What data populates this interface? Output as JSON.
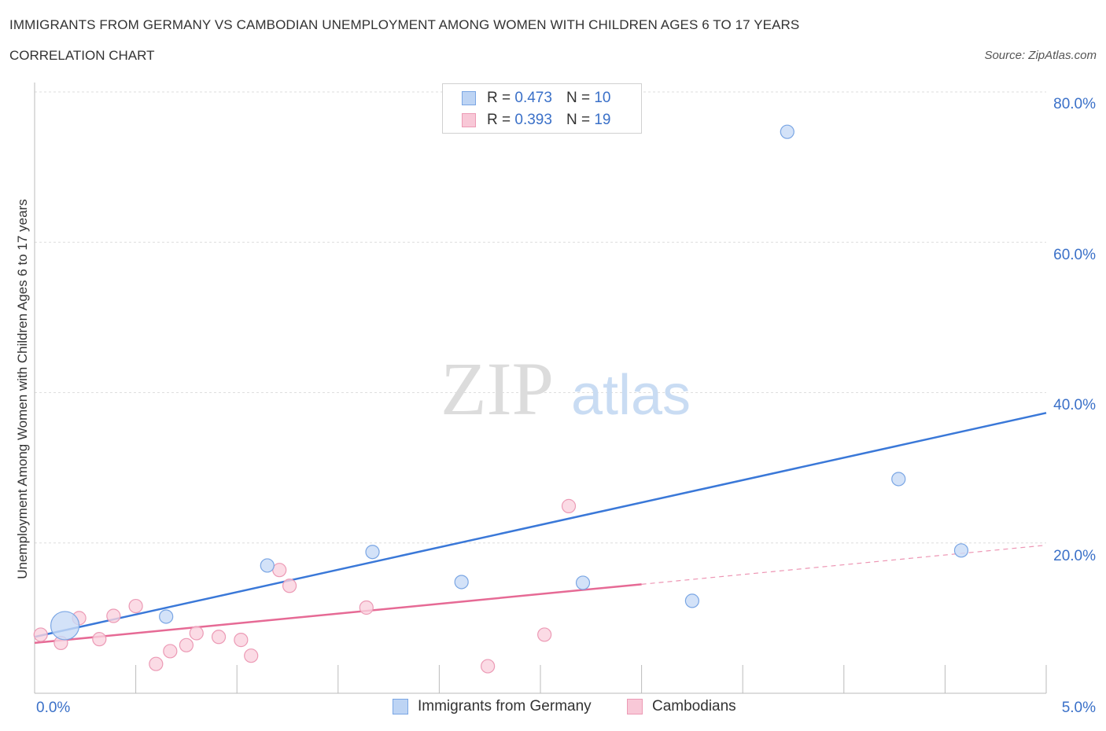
{
  "header": {
    "title": "IMMIGRANTS FROM GERMANY VS CAMBODIAN UNEMPLOYMENT AMONG WOMEN WITH CHILDREN AGES 6 TO 17 YEARS",
    "subtitle": "CORRELATION CHART",
    "source": "Source: ZipAtlas.com"
  },
  "watermark": {
    "zip": "ZIP",
    "atlas": "atlas"
  },
  "legend": {
    "r_label": "R =",
    "n_label": "N =",
    "entries": [
      {
        "name": "Immigrants from Germany",
        "r": "0.473",
        "n": "10",
        "color": "#3a78d8",
        "fill": "#bdd4f4"
      },
      {
        "name": "Cambodians",
        "r": "0.393",
        "n": "19",
        "color": "#e66a95",
        "fill": "#f8c8d7"
      }
    ]
  },
  "axes": {
    "xlabel_left": "0.0%",
    "xlabel_right": "5.0%",
    "ylabel": "Unemployment Among Women with Children Ages 6 to 17 years",
    "yticks": [
      "80.0%",
      "60.0%",
      "40.0%",
      "20.0%"
    ]
  },
  "chart_data": {
    "type": "scatter",
    "title": "IMMIGRANTS FROM GERMANY VS CAMBODIAN UNEMPLOYMENT AMONG WOMEN WITH CHILDREN AGES 6 TO 17 YEARS",
    "xlabel": "",
    "ylabel": "Unemployment Among Women with Children Ages 6 to 17 years",
    "xlim": [
      0,
      5
    ],
    "ylim": [
      0,
      80
    ],
    "yticks": [
      20,
      40,
      60,
      80
    ],
    "grid": true,
    "series": [
      {
        "name": "Immigrants from Germany",
        "color": "#3a78d8",
        "points": [
          {
            "x": 0.15,
            "y": 9.0,
            "size": 3
          },
          {
            "x": 0.65,
            "y": 10.2,
            "size": 1
          },
          {
            "x": 1.15,
            "y": 17.0,
            "size": 1
          },
          {
            "x": 1.67,
            "y": 18.8,
            "size": 1
          },
          {
            "x": 2.11,
            "y": 14.8,
            "size": 1
          },
          {
            "x": 2.71,
            "y": 14.7,
            "size": 1
          },
          {
            "x": 3.25,
            "y": 12.3,
            "size": 1
          },
          {
            "x": 3.72,
            "y": 74.7,
            "size": 1
          },
          {
            "x": 4.27,
            "y": 28.5,
            "size": 1
          },
          {
            "x": 4.58,
            "y": 19.0,
            "size": 1
          }
        ],
        "trend": {
          "x": [
            0,
            5
          ],
          "y": [
            7.5,
            37.3
          ],
          "dashed_from": null
        }
      },
      {
        "name": "Cambodians",
        "color": "#e66a95",
        "points": [
          {
            "x": 0.03,
            "y": 7.8,
            "size": 1
          },
          {
            "x": 0.13,
            "y": 6.7,
            "size": 1
          },
          {
            "x": 0.22,
            "y": 10.0,
            "size": 1
          },
          {
            "x": 0.32,
            "y": 7.2,
            "size": 1
          },
          {
            "x": 0.39,
            "y": 10.3,
            "size": 1
          },
          {
            "x": 0.5,
            "y": 11.6,
            "size": 1
          },
          {
            "x": 0.6,
            "y": 3.9,
            "size": 1
          },
          {
            "x": 0.67,
            "y": 5.6,
            "size": 1
          },
          {
            "x": 0.75,
            "y": 6.4,
            "size": 1
          },
          {
            "x": 0.8,
            "y": 8.0,
            "size": 1
          },
          {
            "x": 0.91,
            "y": 7.5,
            "size": 1
          },
          {
            "x": 1.02,
            "y": 7.1,
            "size": 1
          },
          {
            "x": 1.07,
            "y": 5.0,
            "size": 1
          },
          {
            "x": 1.21,
            "y": 16.4,
            "size": 1
          },
          {
            "x": 1.26,
            "y": 14.3,
            "size": 1
          },
          {
            "x": 1.64,
            "y": 11.4,
            "size": 1
          },
          {
            "x": 2.24,
            "y": 3.6,
            "size": 1
          },
          {
            "x": 2.52,
            "y": 7.8,
            "size": 1
          },
          {
            "x": 2.64,
            "y": 24.9,
            "size": 1
          }
        ],
        "trend": {
          "x": [
            0,
            5
          ],
          "y": [
            6.7,
            19.7
          ],
          "dashed_from": 3.0
        }
      }
    ]
  }
}
